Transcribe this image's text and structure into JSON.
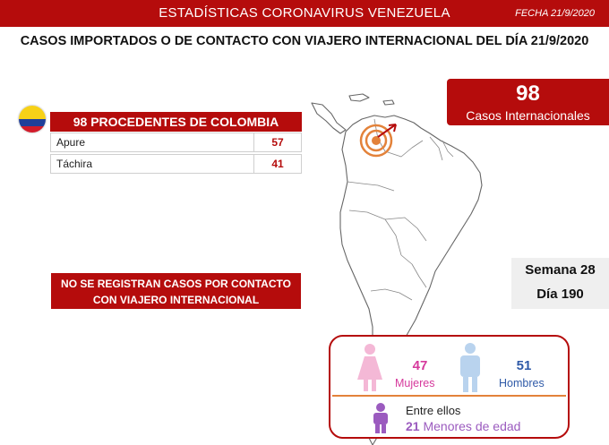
{
  "header": {
    "title": "ESTADÍSTICAS CORONAVIRUS VENEZUELA",
    "date": "FECHA 21/9/2020"
  },
  "subtitle": "CASOS IMPORTADOS O DE CONTACTO CON VIAJERO INTERNACIONAL DEL DÍA  21/9/2020",
  "international": {
    "count": "98",
    "label": "Casos Internacionales"
  },
  "colombia": {
    "header": "98 PROCEDENTES DE COLOMBIA",
    "flag_icon": "colombia-flag-icon",
    "rows": [
      {
        "state": "Apure",
        "cases": "57"
      },
      {
        "state": "Táchira",
        "cases": "41"
      }
    ]
  },
  "notice": {
    "line1": "NO SE REGISTRAN CASOS POR CONTACTO",
    "line2": "CON VIAJERO INTERNACIONAL"
  },
  "week": {
    "semana": "Semana 28",
    "dia": "Día 190"
  },
  "gender": {
    "women_count": "47",
    "women_label": "Mujeres",
    "men_count": "51",
    "men_label": "Hombres",
    "between_label": "Entre ellos",
    "minors_count": "21",
    "minors_label": " Menores de edad"
  },
  "colors": {
    "brand_red": "#b50c0c",
    "women_pink": "#d6399c",
    "men_blue": "#2f5aa8",
    "minors_purple": "#9b5bbf",
    "divider_orange": "#e3823a"
  }
}
